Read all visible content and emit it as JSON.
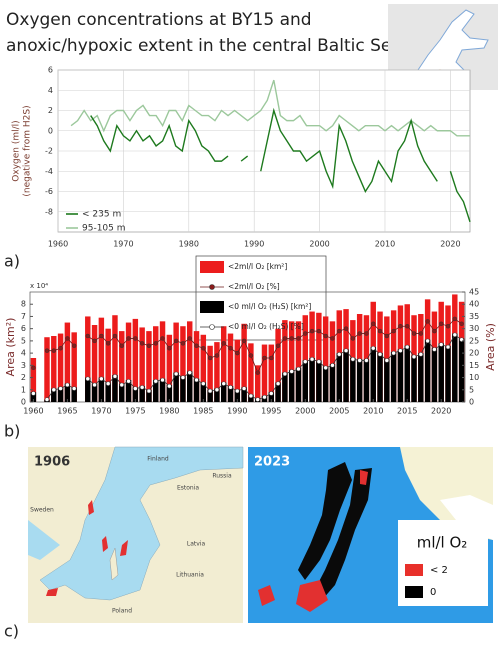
{
  "chart_data": [
    {
      "type": "line",
      "title": [
        "Oxygen concentrations at BY15 and",
        "anoxic/hypoxic extent in the central Baltic Sea"
      ],
      "y_label": [
        "Oxygen (ml/l)",
        "(negative from H2S)"
      ],
      "x": [
        1962,
        1963,
        1964,
        1965,
        1966,
        1967,
        1968,
        1969,
        1970,
        1971,
        1972,
        1973,
        1974,
        1975,
        1976,
        1977,
        1978,
        1979,
        1980,
        1981,
        1982,
        1983,
        1984,
        1985,
        1986,
        1987,
        1988,
        1989,
        1990,
        1991,
        1992,
        1993,
        1994,
        1995,
        1996,
        1997,
        1998,
        1999,
        2000,
        2001,
        2002,
        2003,
        2004,
        2005,
        2006,
        2007,
        2008,
        2009,
        2010,
        2011,
        2012,
        2013,
        2014,
        2015,
        2016,
        2017,
        2018,
        2019,
        2020,
        2021,
        2022,
        2023
      ],
      "series": [
        {
          "name": "< 235 m",
          "color": "#1e7a1e",
          "values": [
            null,
            null,
            null,
            1.5,
            0.5,
            -1,
            -2,
            0.5,
            -0.5,
            -1,
            0,
            -1,
            -0.5,
            -1.5,
            -1,
            0.5,
            -1.5,
            -2,
            1,
            0,
            -1.5,
            -2,
            -3,
            -3,
            -2.5,
            null,
            -3,
            -2.5,
            null,
            -4,
            -1,
            2,
            0,
            -1,
            -2,
            -2,
            -3,
            -2.5,
            -2,
            -4,
            -5.5,
            0.5,
            -1,
            -3,
            -4.5,
            -6,
            -5,
            -3,
            -4,
            -5,
            -2,
            -1,
            1,
            -1.5,
            -3,
            -4,
            -5,
            null,
            -4,
            -6,
            -7,
            -9
          ]
        },
        {
          "name": "95-105 m",
          "color": "#9cc89c",
          "values": [
            0.5,
            1,
            2,
            1,
            1.5,
            0,
            1.5,
            2,
            2,
            1,
            2,
            2.5,
            1.5,
            1.5,
            0.5,
            2,
            2,
            1,
            2.5,
            2,
            1.5,
            1.5,
            1,
            2,
            1.5,
            2,
            1.5,
            1,
            1.5,
            2,
            3,
            5,
            1.5,
            1,
            1,
            1.5,
            0.5,
            0.5,
            0.5,
            0,
            0.5,
            1.5,
            1,
            0.5,
            0,
            0.5,
            0.5,
            0.5,
            0,
            0.5,
            0,
            0.5,
            1,
            0.5,
            0,
            0.5,
            0,
            0,
            0,
            -0.5,
            -0.5,
            -0.5
          ]
        }
      ],
      "xlim": [
        1960,
        2023
      ],
      "xticks": [
        1960,
        1970,
        1980,
        1990,
        2000,
        2010,
        2020
      ],
      "ylim": [
        -10,
        6
      ],
      "yticks": [
        6,
        4,
        2,
        0,
        -2,
        -4,
        -6,
        -8
      ],
      "grid": true
    },
    {
      "type": "bar",
      "y_label": "Area (km²)",
      "y2_label": "Area (%)",
      "y_multiplier_label": "x 10⁴",
      "x": [
        1960,
        1961,
        1962,
        1963,
        1964,
        1965,
        1966,
        1967,
        1968,
        1969,
        1970,
        1971,
        1972,
        1973,
        1974,
        1975,
        1976,
        1977,
        1978,
        1979,
        1980,
        1981,
        1982,
        1983,
        1984,
        1985,
        1986,
        1987,
        1988,
        1989,
        1990,
        1991,
        1992,
        1993,
        1994,
        1995,
        1996,
        1997,
        1998,
        1999,
        2000,
        2001,
        2002,
        2003,
        2004,
        2005,
        2006,
        2007,
        2008,
        2009,
        2010,
        2011,
        2012,
        2013,
        2014,
        2015,
        2016,
        2017,
        2018,
        2019,
        2020,
        2021,
        2022,
        2023
      ],
      "series": [
        {
          "name": "<2ml/l O₂ [km²]",
          "kind": "bar",
          "color": "#ec1c1c",
          "values": [
            3.6,
            null,
            5.3,
            5.4,
            5.6,
            6.5,
            5.7,
            null,
            7.0,
            6.3,
            6.9,
            6.0,
            7.1,
            5.8,
            6.5,
            6.8,
            6.1,
            5.8,
            6.2,
            6.6,
            5.5,
            6.5,
            6.2,
            6.6,
            5.8,
            5.5,
            4.6,
            4.9,
            6.2,
            5.6,
            5.1,
            6.4,
            4.8,
            3.0,
            4.7,
            4.7,
            6.0,
            6.7,
            6.6,
            6.6,
            7.1,
            7.4,
            7.3,
            7.0,
            6.6,
            7.5,
            7.6,
            6.7,
            7.2,
            7.1,
            8.2,
            7.4,
            7.0,
            7.5,
            7.9,
            8.0,
            7.1,
            7.2,
            8.4,
            7.4,
            8.2,
            7.9,
            8.8,
            8.2
          ]
        },
        {
          "name": "<2ml/l O₂ [%]",
          "kind": "line",
          "axis": "y2",
          "color": "#6b1a1a",
          "marker_color": "#8b1a1a",
          "values": [
            14,
            null,
            21,
            21,
            22,
            26,
            23,
            null,
            27,
            25,
            27,
            24,
            27,
            23,
            26,
            26,
            24,
            23,
            24,
            26,
            22,
            25,
            24,
            26,
            23,
            22,
            18,
            19,
            24,
            22,
            20,
            25,
            19,
            12,
            18,
            18,
            23,
            26,
            26,
            26,
            28,
            29,
            29,
            27,
            26,
            29,
            30,
            26,
            28,
            28,
            32,
            29,
            27,
            29,
            31,
            31,
            28,
            28,
            33,
            29,
            32,
            31,
            34,
            32
          ]
        },
        {
          "name": "<0 ml/l O₂ (H₂S) [km²]",
          "kind": "bar",
          "color": "#000000",
          "values": [
            0.8,
            null,
            0.2,
            1.1,
            1.2,
            1.5,
            1.2,
            null,
            2.0,
            1.5,
            2.0,
            1.6,
            2.2,
            1.5,
            1.8,
            1.2,
            1.3,
            1.0,
            1.8,
            1.9,
            1.4,
            2.4,
            2.1,
            2.5,
            1.9,
            1.6,
            1.0,
            1.1,
            1.6,
            1.3,
            1.0,
            1.2,
            0.6,
            0.3,
            0.5,
            0.8,
            1.6,
            2.4,
            2.6,
            2.8,
            3.4,
            3.6,
            3.4,
            2.9,
            3.1,
            4.0,
            4.3,
            3.6,
            3.5,
            3.5,
            4.5,
            4.0,
            3.5,
            4.1,
            4.3,
            4.6,
            3.8,
            4.0,
            5.1,
            4.4,
            4.8,
            4.6,
            5.6,
            5.2
          ]
        },
        {
          "name": "<0 ml/l O₂ (H₂S) [%]",
          "kind": "line",
          "axis": "y2",
          "color": "#333333",
          "marker_color": "#ffffff",
          "values": [
            3.5,
            null,
            1,
            5,
            5.5,
            7,
            5.5,
            null,
            9.5,
            7,
            9.5,
            7.5,
            10.5,
            7,
            8.5,
            5.5,
            6,
            4.5,
            8.5,
            9,
            6.5,
            11.5,
            10,
            12,
            9,
            7.5,
            4.5,
            5,
            7.5,
            6,
            4.5,
            5.5,
            2.5,
            1,
            2,
            3.5,
            7.5,
            11.5,
            12.5,
            13.5,
            16.5,
            17.5,
            16.5,
            14,
            15,
            19.5,
            21,
            17.5,
            17,
            17,
            22,
            19.5,
            17,
            20,
            21,
            22.5,
            18.5,
            19.5,
            25,
            21.5,
            23.5,
            22.5,
            27.5,
            25.5
          ]
        }
      ],
      "xlim": [
        1959.5,
        2023.5
      ],
      "xticks": [
        1960,
        1965,
        1970,
        1975,
        1980,
        1985,
        1990,
        1995,
        2000,
        2005,
        2010,
        2015,
        2020
      ],
      "ylim": [
        0,
        9
      ],
      "yticks": [
        0,
        1,
        2,
        3,
        4,
        5,
        6,
        7,
        8
      ],
      "y2lim": [
        0,
        45
      ],
      "y2ticks": [
        0,
        5,
        10,
        15,
        20,
        25,
        30,
        35,
        40,
        45
      ],
      "grid": false
    }
  ],
  "panel_labels": [
    "a)",
    "b)",
    "c)"
  ],
  "maps": {
    "left": {
      "year": "1906",
      "labels": [
        "Finland",
        "Sweden",
        "Estonia",
        "Russia",
        "Latvia",
        "Lithuania",
        "Poland"
      ]
    },
    "right": {
      "year": "2023",
      "legend_title": "ml/l O₂",
      "legend_items": [
        {
          "label": "< 2",
          "color": "#e8302a"
        },
        {
          "label": "0",
          "color": "#000000"
        }
      ]
    }
  }
}
